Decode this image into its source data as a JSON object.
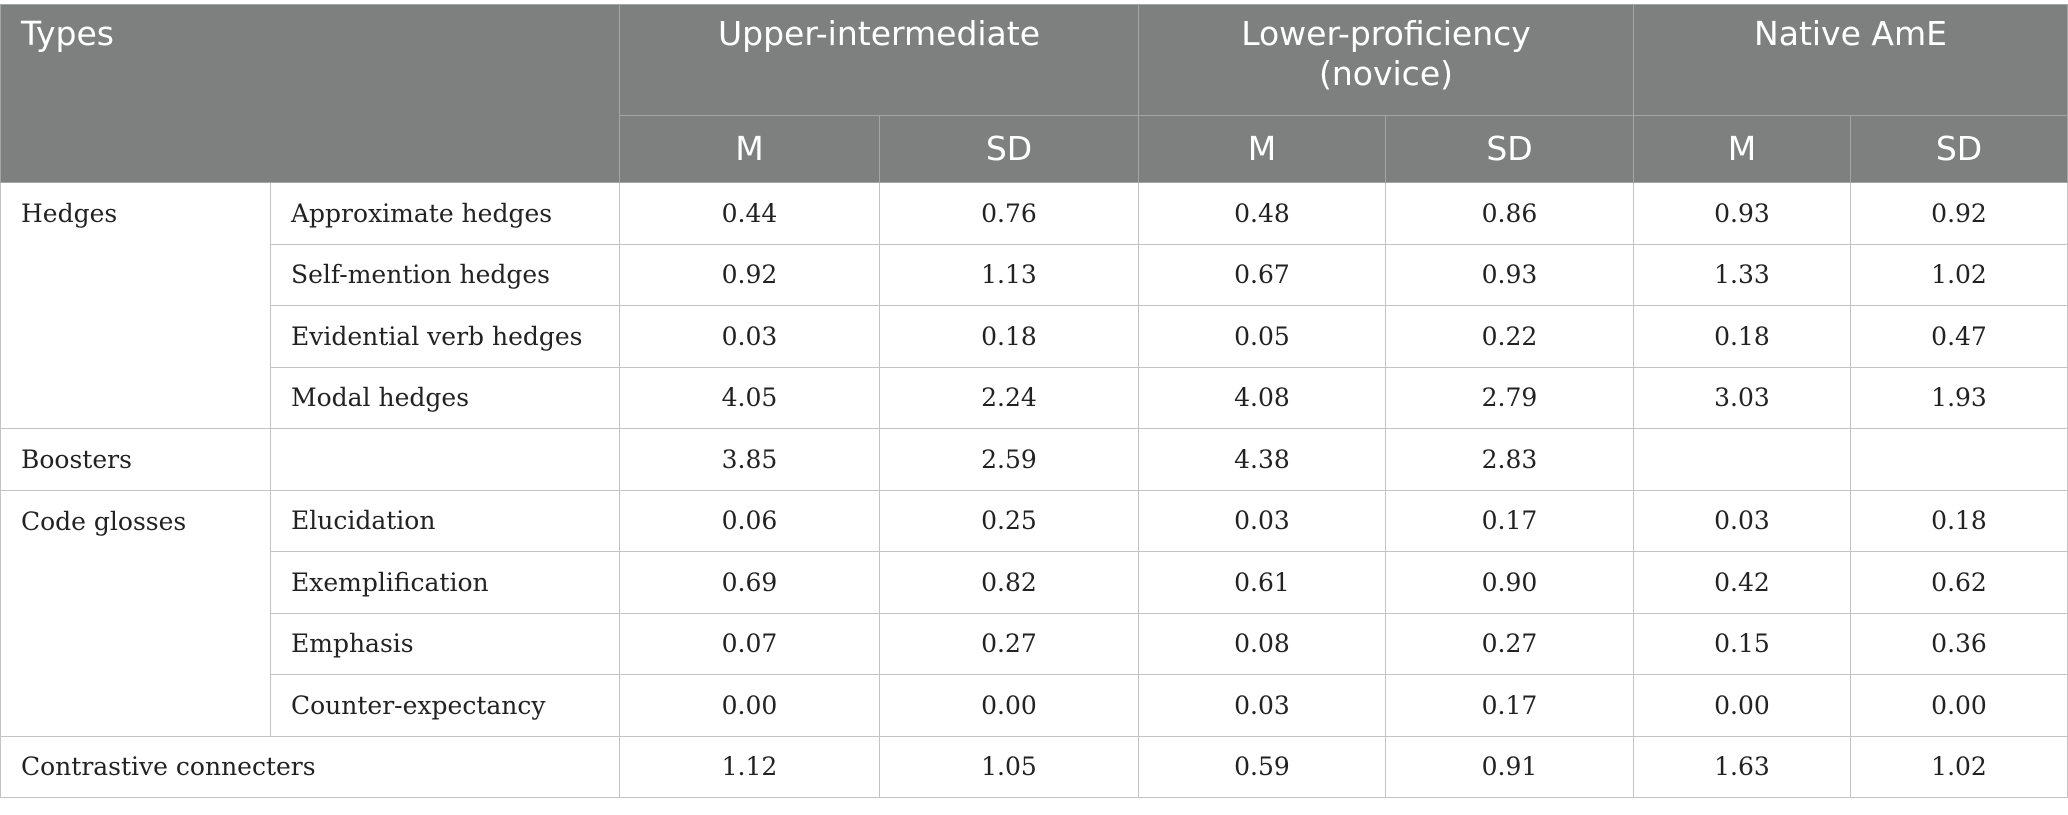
{
  "header": {
    "types": "Types",
    "groups": [
      "Upper-intermediate",
      "Lower-proficiency\n(novice)",
      "Native AmE"
    ],
    "stats": [
      "M",
      "SD",
      "M",
      "SD",
      "M",
      "SD"
    ]
  },
  "categories": {
    "hedges": "Hedges",
    "boosters": "Boosters",
    "code_glosses": "Code glosses",
    "contrastive": "Contrastive connecters"
  },
  "rows": [
    {
      "sub": "Approximate hedges",
      "values": [
        "0.44",
        "0.76",
        "0.48",
        "0.86",
        "0.93",
        "0.92"
      ]
    },
    {
      "sub": "Self-mention hedges",
      "values": [
        "0.92",
        "1.13",
        "0.67",
        "0.93",
        "1.33",
        "1.02"
      ]
    },
    {
      "sub": "Evidential verb hedges",
      "values": [
        "0.03",
        "0.18",
        "0.05",
        "0.22",
        "0.18",
        "0.47"
      ]
    },
    {
      "sub": "Modal hedges",
      "values": [
        "4.05",
        "2.24",
        "4.08",
        "2.79",
        "3.03",
        "1.93"
      ]
    },
    {
      "sub": "",
      "values": [
        "3.85",
        "2.59",
        "4.38",
        "2.83",
        "",
        ""
      ]
    },
    {
      "sub": "Elucidation",
      "values": [
        "0.06",
        "0.25",
        "0.03",
        "0.17",
        "0.03",
        "0.18"
      ]
    },
    {
      "sub": "Exemplification",
      "values": [
        "0.69",
        "0.82",
        "0.61",
        "0.90",
        "0.42",
        "0.62"
      ]
    },
    {
      "sub": "Emphasis",
      "values": [
        "0.07",
        "0.27",
        "0.08",
        "0.27",
        "0.15",
        "0.36"
      ]
    },
    {
      "sub": "Counter-expectancy",
      "values": [
        "0.00",
        "0.00",
        "0.03",
        "0.17",
        "0.00",
        "0.00"
      ]
    },
    {
      "sub": "",
      "values": [
        "1.12",
        "1.05",
        "0.59",
        "0.91",
        "1.63",
        "1.02"
      ]
    }
  ]
}
